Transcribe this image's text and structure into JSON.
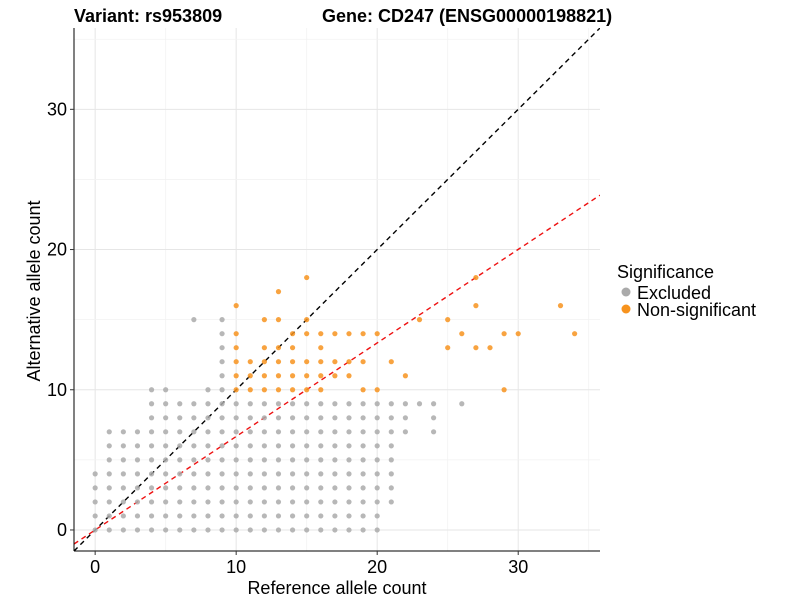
{
  "chart_data": {
    "type": "scatter",
    "title_left": "Variant: rs953809",
    "title_right": "Gene: CD247 (ENSG00000198821)",
    "xlabel": "Reference allele count",
    "ylabel": "Alternative allele count",
    "xlim": [
      -1.5,
      35.8
    ],
    "ylim": [
      -1.5,
      35.8
    ],
    "xticks": [
      0,
      10,
      20,
      30
    ],
    "yticks": [
      0,
      10,
      20,
      30
    ],
    "grid": true,
    "legend_position": "right",
    "legend_title": "Significance",
    "reference_lines": [
      {
        "kind": "diagonal",
        "slope": 1.0,
        "intercept": 0,
        "color": "#000000",
        "style": "dashed"
      },
      {
        "kind": "ratio",
        "slope": 0.667,
        "intercept": 0,
        "color": "#ee1111",
        "style": "dashed"
      }
    ],
    "series": [
      {
        "name": "Excluded",
        "color": "#aaaaaa",
        "points": [
          [
            0,
            0
          ],
          [
            0,
            1
          ],
          [
            0,
            2
          ],
          [
            0,
            3
          ],
          [
            0,
            4
          ],
          [
            1,
            0
          ],
          [
            1,
            1
          ],
          [
            1,
            2
          ],
          [
            1,
            3
          ],
          [
            1,
            4
          ],
          [
            1,
            5
          ],
          [
            1,
            6
          ],
          [
            1,
            7
          ],
          [
            2,
            0
          ],
          [
            2,
            1
          ],
          [
            2,
            2
          ],
          [
            2,
            3
          ],
          [
            2,
            4
          ],
          [
            2,
            5
          ],
          [
            2,
            6
          ],
          [
            2,
            7
          ],
          [
            3,
            0
          ],
          [
            3,
            1
          ],
          [
            3,
            2
          ],
          [
            3,
            3
          ],
          [
            3,
            4
          ],
          [
            3,
            5
          ],
          [
            3,
            6
          ],
          [
            3,
            7
          ],
          [
            4,
            0
          ],
          [
            4,
            1
          ],
          [
            4,
            2
          ],
          [
            4,
            3
          ],
          [
            4,
            4
          ],
          [
            4,
            5
          ],
          [
            4,
            6
          ],
          [
            4,
            7
          ],
          [
            4,
            8
          ],
          [
            4,
            9
          ],
          [
            4,
            10
          ],
          [
            5,
            0
          ],
          [
            5,
            1
          ],
          [
            5,
            2
          ],
          [
            5,
            3
          ],
          [
            5,
            4
          ],
          [
            5,
            5
          ],
          [
            5,
            6
          ],
          [
            5,
            7
          ],
          [
            5,
            8
          ],
          [
            5,
            9
          ],
          [
            5,
            10
          ],
          [
            6,
            0
          ],
          [
            6,
            1
          ],
          [
            6,
            2
          ],
          [
            6,
            3
          ],
          [
            6,
            4
          ],
          [
            6,
            5
          ],
          [
            6,
            6
          ],
          [
            6,
            7
          ],
          [
            6,
            8
          ],
          [
            6,
            9
          ],
          [
            7,
            0
          ],
          [
            7,
            1
          ],
          [
            7,
            2
          ],
          [
            7,
            3
          ],
          [
            7,
            4
          ],
          [
            7,
            5
          ],
          [
            7,
            6
          ],
          [
            7,
            7
          ],
          [
            7,
            8
          ],
          [
            7,
            9
          ],
          [
            7,
            15
          ],
          [
            8,
            0
          ],
          [
            8,
            1
          ],
          [
            8,
            2
          ],
          [
            8,
            3
          ],
          [
            8,
            4
          ],
          [
            8,
            5
          ],
          [
            8,
            6
          ],
          [
            8,
            7
          ],
          [
            8,
            8
          ],
          [
            8,
            9
          ],
          [
            8,
            10
          ],
          [
            9,
            0
          ],
          [
            9,
            1
          ],
          [
            9,
            2
          ],
          [
            9,
            3
          ],
          [
            9,
            4
          ],
          [
            9,
            5
          ],
          [
            9,
            6
          ],
          [
            9,
            7
          ],
          [
            9,
            8
          ],
          [
            9,
            9
          ],
          [
            9,
            10
          ],
          [
            9,
            11
          ],
          [
            9,
            12
          ],
          [
            9,
            13
          ],
          [
            9,
            14
          ],
          [
            9,
            15
          ],
          [
            10,
            0
          ],
          [
            10,
            1
          ],
          [
            10,
            2
          ],
          [
            10,
            3
          ],
          [
            10,
            4
          ],
          [
            10,
            5
          ],
          [
            10,
            6
          ],
          [
            10,
            7
          ],
          [
            10,
            8
          ],
          [
            10,
            9
          ],
          [
            11,
            0
          ],
          [
            11,
            1
          ],
          [
            11,
            2
          ],
          [
            11,
            3
          ],
          [
            11,
            4
          ],
          [
            11,
            5
          ],
          [
            11,
            6
          ],
          [
            11,
            7
          ],
          [
            11,
            8
          ],
          [
            11,
            9
          ],
          [
            12,
            0
          ],
          [
            12,
            1
          ],
          [
            12,
            2
          ],
          [
            12,
            3
          ],
          [
            12,
            4
          ],
          [
            12,
            5
          ],
          [
            12,
            6
          ],
          [
            12,
            7
          ],
          [
            12,
            8
          ],
          [
            12,
            9
          ],
          [
            13,
            0
          ],
          [
            13,
            1
          ],
          [
            13,
            2
          ],
          [
            13,
            3
          ],
          [
            13,
            4
          ],
          [
            13,
            5
          ],
          [
            13,
            6
          ],
          [
            13,
            7
          ],
          [
            13,
            8
          ],
          [
            13,
            9
          ],
          [
            14,
            0
          ],
          [
            14,
            1
          ],
          [
            14,
            2
          ],
          [
            14,
            3
          ],
          [
            14,
            4
          ],
          [
            14,
            5
          ],
          [
            14,
            6
          ],
          [
            14,
            7
          ],
          [
            14,
            8
          ],
          [
            14,
            9
          ],
          [
            15,
            0
          ],
          [
            15,
            1
          ],
          [
            15,
            2
          ],
          [
            15,
            3
          ],
          [
            15,
            4
          ],
          [
            15,
            5
          ],
          [
            15,
            6
          ],
          [
            15,
            7
          ],
          [
            15,
            8
          ],
          [
            15,
            9
          ],
          [
            16,
            0
          ],
          [
            16,
            1
          ],
          [
            16,
            2
          ],
          [
            16,
            3
          ],
          [
            16,
            4
          ],
          [
            16,
            5
          ],
          [
            16,
            6
          ],
          [
            16,
            7
          ],
          [
            16,
            8
          ],
          [
            16,
            9
          ],
          [
            17,
            0
          ],
          [
            17,
            1
          ],
          [
            17,
            2
          ],
          [
            17,
            3
          ],
          [
            17,
            4
          ],
          [
            17,
            5
          ],
          [
            17,
            6
          ],
          [
            17,
            7
          ],
          [
            17,
            8
          ],
          [
            17,
            9
          ],
          [
            18,
            0
          ],
          [
            18,
            1
          ],
          [
            18,
            2
          ],
          [
            18,
            3
          ],
          [
            18,
            4
          ],
          [
            18,
            5
          ],
          [
            18,
            6
          ],
          [
            18,
            7
          ],
          [
            18,
            8
          ],
          [
            18,
            9
          ],
          [
            19,
            0
          ],
          [
            19,
            1
          ],
          [
            19,
            2
          ],
          [
            19,
            3
          ],
          [
            19,
            4
          ],
          [
            19,
            5
          ],
          [
            19,
            6
          ],
          [
            19,
            7
          ],
          [
            19,
            8
          ],
          [
            19,
            9
          ],
          [
            20,
            0
          ],
          [
            20,
            1
          ],
          [
            20,
            2
          ],
          [
            20,
            3
          ],
          [
            20,
            4
          ],
          [
            20,
            5
          ],
          [
            20,
            6
          ],
          [
            20,
            7
          ],
          [
            20,
            8
          ],
          [
            20,
            9
          ],
          [
            21,
            3
          ],
          [
            21,
            4
          ],
          [
            21,
            5
          ],
          [
            21,
            6
          ],
          [
            21,
            7
          ],
          [
            21,
            8
          ],
          [
            21,
            9
          ],
          [
            21,
            2
          ],
          [
            22,
            7
          ],
          [
            22,
            8
          ],
          [
            22,
            9
          ],
          [
            23,
            9
          ],
          [
            24,
            7
          ],
          [
            24,
            8
          ],
          [
            24,
            9
          ],
          [
            26,
            9
          ]
        ]
      },
      {
        "name": "Non-significant",
        "color": "#f7931e",
        "points": [
          [
            10,
            10
          ],
          [
            10,
            11
          ],
          [
            10,
            12
          ],
          [
            10,
            13
          ],
          [
            10,
            14
          ],
          [
            10,
            16
          ],
          [
            11,
            10
          ],
          [
            11,
            11
          ],
          [
            11,
            12
          ],
          [
            12,
            10
          ],
          [
            12,
            11
          ],
          [
            12,
            12
          ],
          [
            12,
            13
          ],
          [
            12,
            15
          ],
          [
            13,
            10
          ],
          [
            13,
            11
          ],
          [
            13,
            12
          ],
          [
            13,
            13
          ],
          [
            13,
            15
          ],
          [
            13,
            17
          ],
          [
            14,
            10
          ],
          [
            14,
            11
          ],
          [
            14,
            12
          ],
          [
            14,
            13
          ],
          [
            14,
            14
          ],
          [
            15,
            10
          ],
          [
            15,
            11
          ],
          [
            15,
            12
          ],
          [
            15,
            14
          ],
          [
            15,
            15
          ],
          [
            15,
            18
          ],
          [
            16,
            10
          ],
          [
            16,
            11
          ],
          [
            16,
            12
          ],
          [
            16,
            13
          ],
          [
            16,
            14
          ],
          [
            17,
            11
          ],
          [
            17,
            12
          ],
          [
            17,
            14
          ],
          [
            18,
            11
          ],
          [
            18,
            12
          ],
          [
            18,
            14
          ],
          [
            19,
            10
          ],
          [
            19,
            12
          ],
          [
            19,
            14
          ],
          [
            20,
            10
          ],
          [
            20,
            14
          ],
          [
            21,
            12
          ],
          [
            22,
            11
          ],
          [
            23,
            15
          ],
          [
            25,
            13
          ],
          [
            25,
            15
          ],
          [
            26,
            14
          ],
          [
            27,
            13
          ],
          [
            27,
            16
          ],
          [
            27,
            18
          ],
          [
            28,
            13
          ],
          [
            29,
            10
          ],
          [
            29,
            14
          ],
          [
            30,
            14
          ],
          [
            33,
            16
          ],
          [
            34,
            14
          ]
        ]
      }
    ]
  }
}
